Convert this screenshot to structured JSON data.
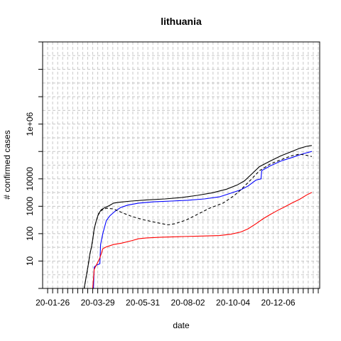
{
  "chart_data": {
    "type": "line",
    "title": "lithuania",
    "xlabel": "date",
    "ylabel": "# confirmed cases",
    "y_scale": "log",
    "ylim": [
      1,
      1000000000
    ],
    "y_ticks": [
      {
        "value": 10,
        "label": "10"
      },
      {
        "value": 100,
        "label": "100"
      },
      {
        "value": 1000,
        "label": "1000"
      },
      {
        "value": 10000,
        "label": "10000"
      },
      {
        "value": 1000000,
        "label": "1e+06"
      }
    ],
    "x_tick_labels": [
      "20-01-26",
      "20-03-29",
      "20-05-31",
      "20-08-02",
      "20-10-04",
      "20-12-06"
    ],
    "grid": true,
    "colors": {
      "series1": "#000000",
      "series2": "#0000ff",
      "series3": "#ff0000",
      "series4": "#000000"
    },
    "series": [
      {
        "color": "#000000",
        "dash": "solid",
        "points": [
          [
            "2020-03-01",
            1
          ],
          [
            "2020-03-10",
            1
          ],
          [
            "2020-03-12",
            2
          ],
          [
            "2020-03-14",
            4
          ],
          [
            "2020-03-16",
            8
          ],
          [
            "2020-03-18",
            18
          ],
          [
            "2020-03-20",
            30
          ],
          [
            "2020-03-22",
            60
          ],
          [
            "2020-03-24",
            150
          ],
          [
            "2020-03-27",
            300
          ],
          [
            "2020-03-30",
            530
          ],
          [
            "2020-04-03",
            750
          ],
          [
            "2020-04-08",
            900
          ],
          [
            "2020-04-14",
            1050
          ],
          [
            "2020-04-20",
            1300
          ],
          [
            "2020-04-28",
            1400
          ],
          [
            "2020-05-15",
            1550
          ],
          [
            "2020-06-05",
            1700
          ],
          [
            "2020-07-01",
            1850
          ],
          [
            "2020-07-25",
            2100
          ],
          [
            "2020-08-15",
            2500
          ],
          [
            "2020-09-05",
            3100
          ],
          [
            "2020-09-25",
            4200
          ],
          [
            "2020-10-10",
            6000
          ],
          [
            "2020-10-20",
            8500
          ],
          [
            "2020-10-30",
            15000
          ],
          [
            "2020-11-10",
            28000
          ],
          [
            "2020-11-25",
            45000
          ],
          [
            "2020-12-10",
            70000
          ],
          [
            "2020-12-25",
            100000
          ],
          [
            "2021-01-05",
            130000
          ],
          [
            "2021-01-15",
            155000
          ],
          [
            "2021-01-22",
            165000
          ]
        ]
      },
      {
        "color": "#0000ff",
        "dash": "solid",
        "points": [
          [
            "2020-03-08",
            1
          ],
          [
            "2020-03-23",
            1
          ],
          [
            "2020-03-24",
            6
          ],
          [
            "2020-03-27",
            7
          ],
          [
            "2020-04-01",
            8
          ],
          [
            "2020-04-02",
            40
          ],
          [
            "2020-04-05",
            100
          ],
          [
            "2020-04-10",
            300
          ],
          [
            "2020-04-15",
            450
          ],
          [
            "2020-04-22",
            650
          ],
          [
            "2020-04-30",
            900
          ],
          [
            "2020-05-10",
            1100
          ],
          [
            "2020-05-25",
            1300
          ],
          [
            "2020-06-15",
            1450
          ],
          [
            "2020-07-10",
            1550
          ],
          [
            "2020-08-01",
            1650
          ],
          [
            "2020-08-25",
            1850
          ],
          [
            "2020-09-15",
            2200
          ],
          [
            "2020-10-01",
            3000
          ],
          [
            "2020-10-15",
            4000
          ],
          [
            "2020-10-25",
            5500
          ],
          [
            "2020-11-05",
            9000
          ],
          [
            "2020-11-12",
            10000
          ],
          [
            "2020-11-13",
            20000
          ],
          [
            "2020-11-25",
            30000
          ],
          [
            "2020-12-10",
            45000
          ],
          [
            "2020-12-25",
            60000
          ],
          [
            "2021-01-05",
            75000
          ],
          [
            "2021-01-15",
            90000
          ],
          [
            "2021-01-22",
            100000
          ]
        ]
      },
      {
        "color": "#ff0000",
        "dash": "solid",
        "points": [
          [
            "2020-03-22",
            1
          ],
          [
            "2020-03-24",
            5
          ],
          [
            "2020-03-28",
            8
          ],
          [
            "2020-04-01",
            13
          ],
          [
            "2020-04-05",
            28
          ],
          [
            "2020-04-10",
            33
          ],
          [
            "2020-04-20",
            40
          ],
          [
            "2020-05-01",
            45
          ],
          [
            "2020-05-15",
            55
          ],
          [
            "2020-05-25",
            65
          ],
          [
            "2020-06-05",
            70
          ],
          [
            "2020-06-25",
            74
          ],
          [
            "2020-07-25",
            78
          ],
          [
            "2020-08-25",
            82
          ],
          [
            "2020-09-15",
            85
          ],
          [
            "2020-10-01",
            95
          ],
          [
            "2020-10-15",
            115
          ],
          [
            "2020-10-25",
            150
          ],
          [
            "2020-11-05",
            230
          ],
          [
            "2020-11-15",
            350
          ],
          [
            "2020-11-25",
            500
          ],
          [
            "2020-12-05",
            700
          ],
          [
            "2020-12-15",
            950
          ],
          [
            "2020-12-25",
            1300
          ],
          [
            "2021-01-05",
            1800
          ],
          [
            "2021-01-15",
            2600
          ],
          [
            "2021-01-22",
            3200
          ]
        ]
      },
      {
        "color": "#000000",
        "dash": "dashed",
        "points": [
          [
            "2020-03-10",
            1
          ],
          [
            "2020-03-12",
            2
          ],
          [
            "2020-03-14",
            4
          ],
          [
            "2020-03-16",
            8
          ],
          [
            "2020-03-18",
            18
          ],
          [
            "2020-03-20",
            30
          ],
          [
            "2020-03-22",
            60
          ],
          [
            "2020-03-24",
            150
          ],
          [
            "2020-03-27",
            300
          ],
          [
            "2020-03-30",
            500
          ],
          [
            "2020-04-03",
            700
          ],
          [
            "2020-04-10",
            850
          ],
          [
            "2020-04-20",
            800
          ],
          [
            "2020-05-01",
            600
          ],
          [
            "2020-05-15",
            430
          ],
          [
            "2020-06-01",
            320
          ],
          [
            "2020-06-20",
            250
          ],
          [
            "2020-07-05",
            210
          ],
          [
            "2020-07-15",
            230
          ],
          [
            "2020-07-30",
            310
          ],
          [
            "2020-08-15",
            500
          ],
          [
            "2020-09-01",
            850
          ],
          [
            "2020-09-20",
            1300
          ],
          [
            "2020-10-05",
            2400
          ],
          [
            "2020-10-15",
            4000
          ],
          [
            "2020-10-30",
            10000
          ],
          [
            "2020-11-10",
            20000
          ],
          [
            "2020-11-25",
            35000
          ],
          [
            "2020-12-10",
            50000
          ],
          [
            "2020-12-25",
            70000
          ],
          [
            "2021-01-05",
            80000
          ],
          [
            "2021-01-15",
            72000
          ],
          [
            "2021-01-22",
            65000
          ]
        ]
      }
    ]
  }
}
